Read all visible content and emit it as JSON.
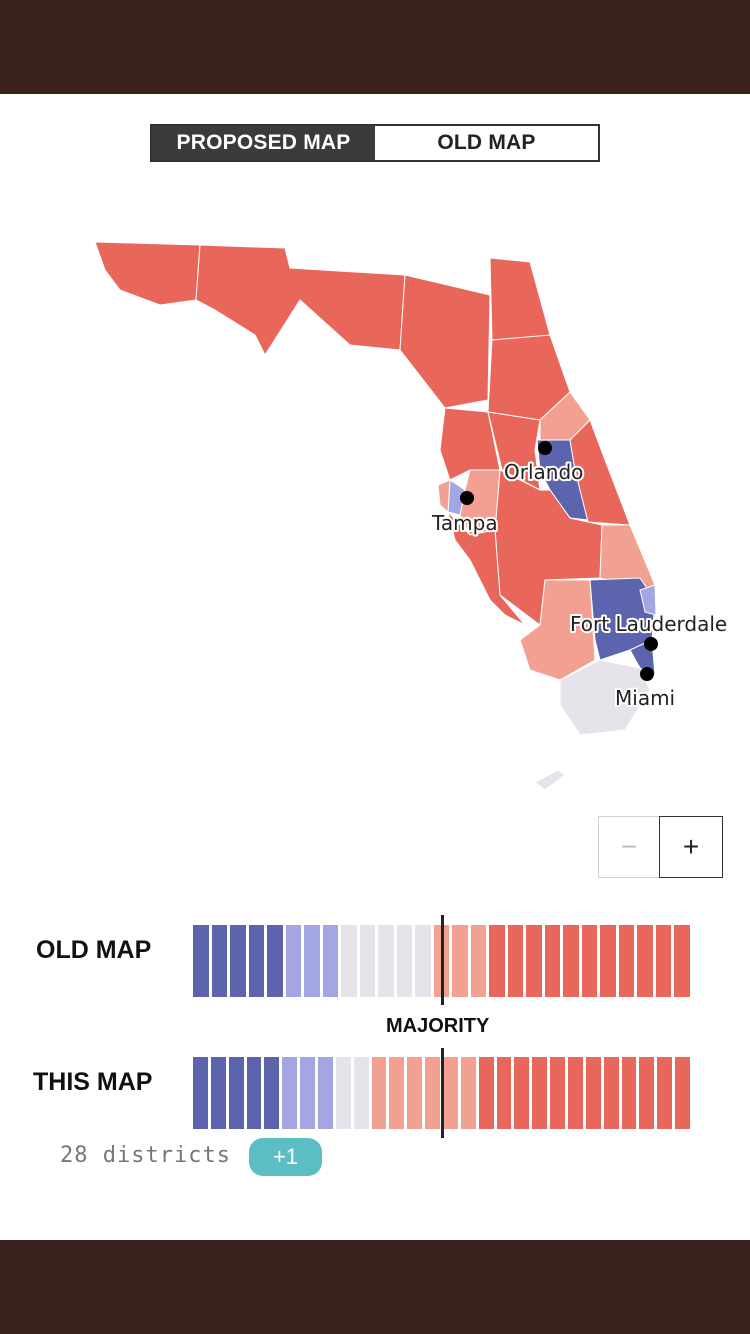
{
  "toggle": {
    "proposed_label": "PROPOSED MAP",
    "old_label": "OLD MAP",
    "selected": "PROPOSED MAP"
  },
  "map": {
    "cities": [
      {
        "name": "Orlando"
      },
      {
        "name": "Tampa"
      },
      {
        "name": "Fort Lauderdale"
      },
      {
        "name": "Miami"
      }
    ],
    "colors": {
      "safe_rep": "#e8675a",
      "lean_rep": "#f1a091",
      "tossup": "#e6e3ea",
      "lean_dem": "#a3a6e2",
      "safe_dem": "#5b64ad"
    }
  },
  "zoom": {
    "out_label": "−",
    "in_label": "+"
  },
  "chart_data": {
    "type": "bar",
    "majority_label": "MAJORITY",
    "rows": [
      {
        "label": "OLD MAP",
        "districts": [
          "safe_dem",
          "safe_dem",
          "safe_dem",
          "safe_dem",
          "safe_dem",
          "lean_dem",
          "lean_dem",
          "lean_dem",
          "tossup",
          "tossup",
          "tossup",
          "tossup",
          "tossup",
          "lean_rep",
          "lean_rep",
          "lean_rep",
          "safe_rep",
          "safe_rep",
          "safe_rep",
          "safe_rep",
          "safe_rep",
          "safe_rep",
          "safe_rep",
          "safe_rep",
          "safe_rep",
          "safe_rep",
          "safe_rep"
        ]
      },
      {
        "label": "THIS MAP",
        "districts": [
          "safe_dem",
          "safe_dem",
          "safe_dem",
          "safe_dem",
          "safe_dem",
          "lean_dem",
          "lean_dem",
          "lean_dem",
          "tossup",
          "tossup",
          "lean_rep",
          "lean_rep",
          "lean_rep",
          "lean_rep",
          "lean_rep",
          "lean_rep",
          "safe_rep",
          "safe_rep",
          "safe_rep",
          "safe_rep",
          "safe_rep",
          "safe_rep",
          "safe_rep",
          "safe_rep",
          "safe_rep",
          "safe_rep",
          "safe_rep",
          "safe_rep"
        ]
      }
    ]
  },
  "footer": {
    "districts_text": "28 districts",
    "change_badge": "+1"
  }
}
